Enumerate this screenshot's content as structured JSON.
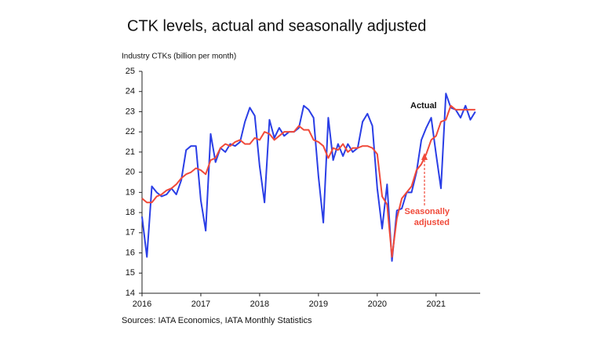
{
  "chart_data": {
    "type": "line",
    "title": "CTK levels, actual and seasonally adjusted",
    "y_label": "Industry CTKs (billion per month)",
    "source": "Sources: IATA Economics, IATA Monthly Statistics",
    "x": [
      2016,
      2016.083,
      2016.167,
      2016.25,
      2016.333,
      2016.417,
      2016.5,
      2016.583,
      2016.667,
      2016.75,
      2016.833,
      2016.917,
      2017,
      2017.083,
      2017.167,
      2017.25,
      2017.333,
      2017.417,
      2017.5,
      2017.583,
      2017.667,
      2017.75,
      2017.833,
      2017.917,
      2018,
      2018.083,
      2018.167,
      2018.25,
      2018.333,
      2018.417,
      2018.5,
      2018.583,
      2018.667,
      2018.75,
      2018.833,
      2018.917,
      2019,
      2019.083,
      2019.167,
      2019.25,
      2019.333,
      2019.417,
      2019.5,
      2019.583,
      2019.667,
      2019.75,
      2019.833,
      2019.917,
      2020,
      2020.083,
      2020.167,
      2020.25,
      2020.333,
      2020.417,
      2020.5,
      2020.583,
      2020.667,
      2020.75,
      2020.833,
      2020.917,
      2021,
      2021.083,
      2021.167,
      2021.25,
      2021.333,
      2021.417,
      2021.5,
      2021.583,
      2021.667
    ],
    "series": [
      {
        "name": "Actual",
        "color": "#2a3ee6",
        "values": [
          17.8,
          15.8,
          19.3,
          19.0,
          18.8,
          18.9,
          19.2,
          18.9,
          19.6,
          21.1,
          21.3,
          21.3,
          18.6,
          17.1,
          21.9,
          20.5,
          21.2,
          21.0,
          21.4,
          21.3,
          21.5,
          22.5,
          23.2,
          22.8,
          20.3,
          18.5,
          22.6,
          21.7,
          22.2,
          21.8,
          22.0,
          22.0,
          22.2,
          23.3,
          23.1,
          22.7,
          19.8,
          17.5,
          22.7,
          20.6,
          21.4,
          20.8,
          21.4,
          21.0,
          21.2,
          22.5,
          22.9,
          22.3,
          19.2,
          17.2,
          19.4,
          15.6,
          18.1,
          18.2,
          19.0,
          19.0,
          20.0,
          21.6,
          22.2,
          22.7,
          20.9,
          19.2,
          23.9,
          23.2,
          23.1,
          22.7,
          23.3,
          22.6,
          23.0
        ]
      },
      {
        "name": "Seasonally adjusted",
        "color": "#f04a3a",
        "values": [
          18.7,
          18.5,
          18.5,
          18.8,
          18.9,
          19.1,
          19.2,
          19.4,
          19.7,
          19.9,
          20.0,
          20.2,
          20.1,
          19.9,
          20.6,
          20.7,
          21.2,
          21.4,
          21.3,
          21.5,
          21.6,
          21.4,
          21.4,
          21.7,
          21.6,
          22.0,
          21.9,
          21.6,
          21.8,
          22.0,
          22.0,
          22.0,
          22.3,
          22.1,
          22.1,
          21.6,
          21.5,
          21.3,
          20.7,
          21.2,
          21.1,
          21.4,
          21.0,
          21.2,
          21.2,
          21.3,
          21.3,
          21.2,
          20.9,
          18.8,
          18.4,
          15.8,
          17.7,
          18.7,
          19.0,
          19.3,
          20.1,
          20.4,
          20.9,
          21.6,
          21.8,
          22.5,
          22.6,
          23.3,
          23.1,
          23.1,
          23.1,
          23.1,
          23.1
        ]
      }
    ],
    "xlim": [
      2016,
      2021.75
    ],
    "xticks": [
      2016,
      2017,
      2018,
      2019,
      2020,
      2021
    ],
    "ylim": [
      14,
      25
    ],
    "yticks": [
      14,
      15,
      16,
      17,
      18,
      19,
      20,
      21,
      22,
      23,
      24,
      25
    ],
    "grid": false
  }
}
